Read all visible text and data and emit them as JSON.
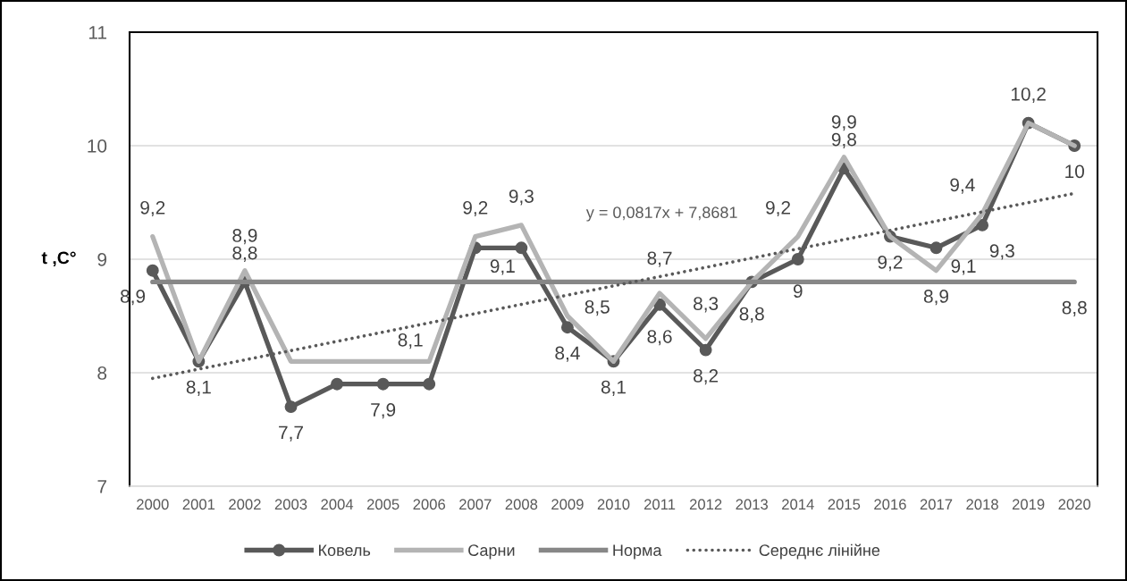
{
  "chart_data": {
    "type": "line",
    "ylabel": "t ,C°",
    "x": [
      2000,
      2001,
      2002,
      2003,
      2004,
      2005,
      2006,
      2007,
      2008,
      2009,
      2010,
      2011,
      2012,
      2013,
      2014,
      2015,
      2016,
      2017,
      2018,
      2019,
      2020
    ],
    "xlim": [
      1999.5,
      2020.5
    ],
    "xticks": [
      2000,
      2001,
      2002,
      2003,
      2004,
      2005,
      2006,
      2007,
      2008,
      2009,
      2010,
      2011,
      2012,
      2013,
      2014,
      2015,
      2016,
      2017,
      2018,
      2019,
      2020
    ],
    "ylim": [
      7,
      11
    ],
    "yticks": [
      7,
      8,
      9,
      10,
      11
    ],
    "grid": "y",
    "legend": "bottom",
    "annotations": [
      "y = 0,0817x + 7,8681"
    ],
    "series": [
      {
        "name": "Ковель",
        "color": "#595959",
        "marker": "circle",
        "line_style": "solid",
        "values": [
          8.9,
          8.1,
          8.8,
          7.7,
          7.9,
          7.9,
          7.9,
          9.1,
          9.1,
          8.4,
          8.1,
          8.6,
          8.2,
          8.8,
          9.0,
          9.8,
          9.2,
          9.1,
          9.3,
          10.2,
          10.0
        ],
        "value_labels": [
          "8,9",
          "8,1",
          "8,8",
          "7,7",
          null,
          "7,9",
          null,
          "9,1",
          null,
          "8,4",
          "8,1",
          "8,6",
          "8,2",
          "8,8",
          "9",
          "9,8",
          "9,2",
          "9,1",
          "9,3",
          null,
          "10"
        ]
      },
      {
        "name": "Сарни",
        "color": "#b4b4b4",
        "marker": "none",
        "line_style": "solid",
        "values": [
          9.2,
          8.1,
          8.9,
          8.1,
          8.1,
          8.1,
          8.1,
          9.2,
          9.3,
          8.5,
          8.1,
          8.7,
          8.3,
          8.8,
          9.2,
          9.9,
          9.2,
          8.9,
          9.4,
          10.2,
          10.0
        ],
        "value_labels": [
          "9,2",
          null,
          "8,9",
          null,
          null,
          "8,1",
          null,
          "9,2",
          "9,3",
          "8,5",
          null,
          "8,7",
          "8,3",
          null,
          "9,2",
          "9,9",
          null,
          "8,9",
          "9,4",
          "10,2",
          null
        ]
      },
      {
        "name": "Норма",
        "color": "#878787",
        "marker": "none",
        "line_style": "solid",
        "values": [
          8.8,
          8.8,
          8.8,
          8.8,
          8.8,
          8.8,
          8.8,
          8.8,
          8.8,
          8.8,
          8.8,
          8.8,
          8.8,
          8.8,
          8.8,
          8.8,
          8.8,
          8.8,
          8.8,
          8.8,
          8.8
        ],
        "value_labels": [
          null,
          null,
          null,
          null,
          null,
          null,
          null,
          null,
          null,
          null,
          null,
          null,
          null,
          null,
          null,
          null,
          null,
          null,
          null,
          null,
          "8,8"
        ]
      },
      {
        "name": "Середнє лінійне",
        "type": "line",
        "color": "#595959",
        "marker": "none",
        "line_style": "dotted",
        "x": [
          2000,
          2020
        ],
        "values": [
          7.95,
          9.58
        ]
      }
    ]
  }
}
